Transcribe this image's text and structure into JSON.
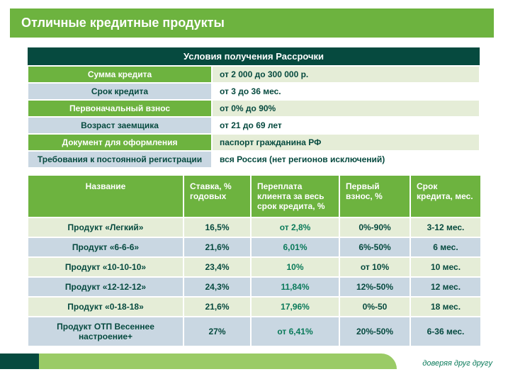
{
  "title": "Отличные кредитные продукты",
  "conditions_header": "Условия получения Рассрочки",
  "conditions": [
    {
      "label": "Сумма кредита",
      "value": "от 2 000 до 300 000 р.",
      "style": "g"
    },
    {
      "label": "Срок кредита",
      "value": "от 3  до 36 мес.",
      "style": "w"
    },
    {
      "label": "Первоначальный взнос",
      "value": "от 0% до 90%",
      "style": "g"
    },
    {
      "label": "Возраст заемщика",
      "value": "от 21 до 69 лет",
      "style": "w"
    },
    {
      "label": "Документ для оформления",
      "value": "паспорт гражданина РФ",
      "style": "g"
    },
    {
      "label": "Требования к постоянной регистрации",
      "value": "вся Россия (нет регионов исключений)",
      "style": "w"
    }
  ],
  "product_columns": {
    "name": "Название",
    "rate": "Ставка, % годовых",
    "over": "Переплата клиента за весь срок кредита, %",
    "down": "Первый взнос, %",
    "term": "Срок кредита, мес."
  },
  "col_widths": {
    "name": 220,
    "rate": 95,
    "over": 125,
    "down": 100,
    "term": 100
  },
  "products": [
    {
      "name": "Продукт «Легкий»",
      "rate": "16,5%",
      "over": "от 2,8%",
      "down": "0%-90%",
      "term": "3-12 мес."
    },
    {
      "name": "Продукт «6-6-6»",
      "rate": "21,6%",
      "over": "6,01%",
      "down": "6%-50%",
      "term": "6 мес."
    },
    {
      "name": "Продукт «10-10-10»",
      "rate": "23,4%",
      "over": "10%",
      "down": "от 10%",
      "term": "10 мес."
    },
    {
      "name": "Продукт «12-12-12»",
      "rate": "24,3%",
      "over": "11,84%",
      "down": "12%-50%",
      "term": "12 мес."
    },
    {
      "name": "Продукт «0-18-18»",
      "rate": "21,6%",
      "over": "17,96%",
      "down": "0%-50",
      "term": "18 мес."
    },
    {
      "name": "Продукт ОТП  Весеннее настроение+",
      "rate": "27%",
      "over": "от 6,41%",
      "down": "20%-50%",
      "term": "6-36 мес."
    }
  ],
  "motto": "доверяя друг другу",
  "colors": {
    "green_main": "#6db33f",
    "green_dark": "#064a3f",
    "green_text": "#0a7a5a",
    "green_fill": "#e5edd7",
    "blue_fill": "#c9d7e2",
    "swoosh_light": "#9acb66"
  }
}
